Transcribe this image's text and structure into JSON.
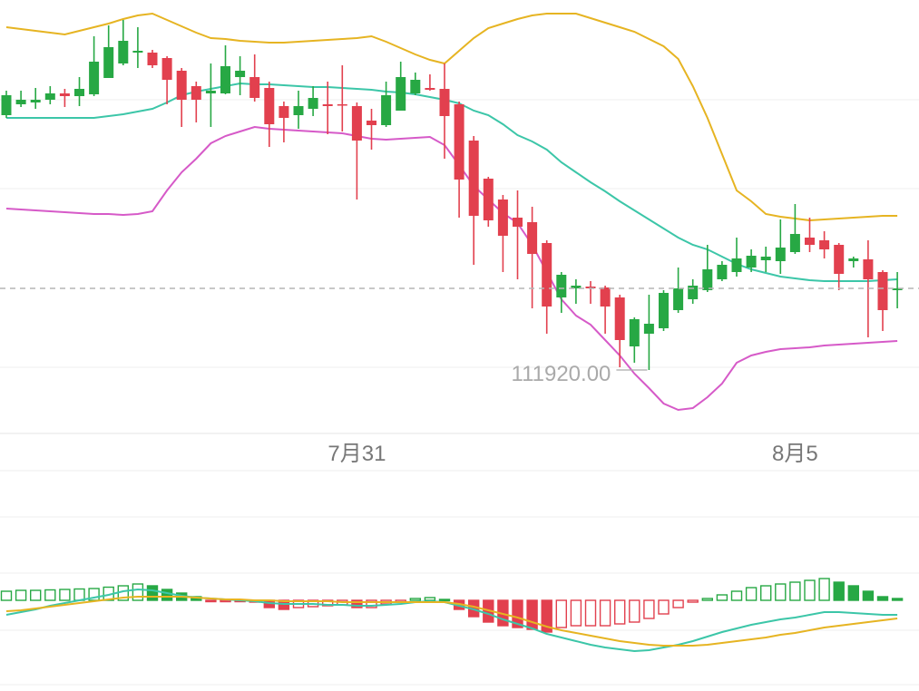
{
  "chart_data": [
    {
      "type": "candlestick",
      "categories": [
        null,
        null,
        null,
        null,
        null,
        null,
        null,
        null,
        null,
        null,
        null,
        null,
        null,
        null,
        null,
        null,
        null,
        null,
        null,
        null,
        null,
        null,
        null,
        null,
        "7月31",
        null,
        null,
        null,
        null,
        null,
        null,
        null,
        null,
        null,
        null,
        null,
        null,
        null,
        null,
        null,
        null,
        null,
        null,
        null,
        null,
        null,
        null,
        null,
        null,
        null,
        null,
        null,
        null,
        null,
        "8月5",
        null,
        null,
        null,
        null,
        null,
        null,
        null
      ],
      "open": [
        117540,
        117780,
        117820,
        117880,
        118020,
        117960,
        118000,
        118360,
        118680,
        118920,
        118920,
        118800,
        118520,
        118180,
        118020,
        118020,
        118380,
        118380,
        118140,
        117740,
        117540,
        117680,
        117780,
        117780,
        117740,
        117420,
        117320,
        117640,
        118020,
        118140,
        118120,
        117780,
        116980,
        116140,
        115680,
        115280,
        115180,
        114720,
        113520,
        113720,
        113760,
        113740,
        113520,
        112440,
        112720,
        112840,
        113240,
        113480,
        113680,
        113920,
        114080,
        114180,
        114340,
        114320,
        114520,
        114840,
        114780,
        114680,
        114320,
        114360,
        114080,
        113680
      ],
      "high": [
        118080,
        118080,
        118140,
        118180,
        118120,
        118380,
        119280,
        119520,
        119640,
        119480,
        118980,
        118840,
        118580,
        118280,
        118680,
        119080,
        118840,
        118880,
        118280,
        117840,
        118080,
        118180,
        118280,
        118640,
        117820,
        117680,
        118280,
        118720,
        118480,
        118440,
        118680,
        117840,
        117080,
        116180,
        115780,
        115880,
        115520,
        114780,
        114080,
        113920,
        113880,
        113780,
        113580,
        113080,
        113580,
        113680,
        114180,
        113920,
        114680,
        114320,
        114840,
        114580,
        114640,
        115240,
        115580,
        115280,
        114980,
        114720,
        114420,
        114780,
        114120,
        114080
      ],
      "low": [
        117480,
        117720,
        117680,
        117780,
        117720,
        117740,
        117960,
        118360,
        118640,
        118580,
        118580,
        117780,
        117280,
        117380,
        117280,
        118000,
        117980,
        117840,
        116840,
        116940,
        117240,
        117520,
        117120,
        117180,
        115680,
        116780,
        117280,
        117640,
        117980,
        118080,
        116580,
        115280,
        114240,
        115080,
        114080,
        113920,
        113280,
        112720,
        113180,
        113380,
        113380,
        112720,
        111980,
        112080,
        111920,
        112780,
        113180,
        113380,
        113640,
        113880,
        113980,
        114080,
        114080,
        114040,
        114480,
        114520,
        114380,
        113680,
        114180,
        112640,
        112780,
        113280
      ],
      "close": [
        117980,
        117880,
        117880,
        118020,
        117960,
        118120,
        118720,
        119040,
        119180,
        118960,
        118640,
        118320,
        117880,
        117880,
        118080,
        118620,
        118520,
        117920,
        117340,
        117480,
        117740,
        117920,
        117740,
        117760,
        116980,
        117320,
        117980,
        118380,
        118320,
        118100,
        117520,
        116120,
        115320,
        115220,
        114880,
        115080,
        114480,
        113320,
        114020,
        113780,
        113720,
        113320,
        112580,
        113040,
        112940,
        113620,
        113720,
        113780,
        114140,
        114240,
        114380,
        114440,
        114420,
        114620,
        114920,
        114680,
        114580,
        114040,
        114380,
        113920,
        113240,
        113720
      ],
      "up_color": "#27a844",
      "down_color": "#e2404e",
      "series": [
        {
          "color": "#e6b422",
          "values": [
            119480,
            119440,
            119400,
            119360,
            119320,
            119400,
            119480,
            119560,
            119660,
            119740,
            119780,
            119640,
            119500,
            119360,
            119240,
            119220,
            119180,
            119160,
            119140,
            119140,
            119160,
            119180,
            119200,
            119220,
            119240,
            119280,
            119160,
            119020,
            118880,
            118760,
            118680,
            118960,
            119240,
            119460,
            119560,
            119660,
            119740,
            119780,
            119780,
            119780,
            119680,
            119580,
            119480,
            119380,
            119220,
            119060,
            118780,
            118180,
            117480,
            116680,
            115880,
            115640,
            115360,
            115300,
            115260,
            115220,
            115240,
            115260,
            115280,
            115300,
            115320,
            115320
          ]
        },
        {
          "color": "#3cc6a8",
          "values": [
            117480,
            117480,
            117480,
            117480,
            117480,
            117480,
            117480,
            117520,
            117560,
            117620,
            117680,
            117820,
            117980,
            118060,
            118120,
            118180,
            118240,
            118220,
            118220,
            118200,
            118180,
            118160,
            118160,
            118140,
            118120,
            118100,
            118060,
            118040,
            118000,
            117940,
            117880,
            117800,
            117640,
            117540,
            117340,
            117100,
            116960,
            116780,
            116500,
            116280,
            116060,
            115860,
            115640,
            115440,
            115240,
            115040,
            114840,
            114680,
            114580,
            114420,
            114260,
            114140,
            114060,
            113980,
            113940,
            113900,
            113880,
            113880,
            113880,
            113880,
            113900,
            113920
          ]
        },
        {
          "color": "#d65ac8",
          "values": [
            115480,
            115460,
            115440,
            115420,
            115400,
            115380,
            115360,
            115360,
            115340,
            115360,
            115420,
            115880,
            116280,
            116580,
            116920,
            117080,
            117180,
            117280,
            117240,
            117220,
            117200,
            117180,
            117160,
            117140,
            117080,
            117020,
            117000,
            117020,
            117040,
            117060,
            116880,
            116440,
            115980,
            115680,
            115380,
            115160,
            114680,
            114080,
            113480,
            113120,
            112920,
            112580,
            112240,
            111840,
            111520,
            111180,
            111040,
            111080,
            111320,
            111620,
            112080,
            112240,
            112320,
            112380,
            112400,
            112420,
            112460,
            112480,
            112500,
            112520,
            112540,
            112560
          ]
        }
      ],
      "last_price": 113720,
      "annotation": {
        "label": "111920.00",
        "value": 111920
      },
      "ylim": [
        110520,
        120080
      ],
      "yticks": [
        117880,
        115920,
        111980
      ],
      "grid": true
    },
    {
      "type": "macd",
      "histogram": [
        200,
        220,
        220,
        230,
        240,
        250,
        260,
        290,
        320,
        360,
        320,
        240,
        160,
        80,
        -20,
        -20,
        -20,
        -40,
        -160,
        -200,
        -160,
        -140,
        -120,
        -100,
        -160,
        -160,
        -80,
        -40,
        40,
        60,
        20,
        -200,
        -360,
        -480,
        -560,
        -600,
        -640,
        -700,
        -600,
        -560,
        -560,
        -560,
        -520,
        -480,
        -400,
        -300,
        -160,
        -40,
        40,
        120,
        200,
        280,
        320,
        360,
        400,
        440,
        480,
        400,
        320,
        200,
        80,
        40
      ],
      "up_color": "#27a844",
      "down_color": "#e2404e",
      "series": [
        {
          "color": "#3cc6a8",
          "values": [
            -320,
            -260,
            -200,
            -120,
            -60,
            0,
            60,
            120,
            200,
            240,
            220,
            160,
            100,
            60,
            40,
            20,
            0,
            -20,
            -60,
            -80,
            -80,
            -80,
            -100,
            -100,
            -120,
            -120,
            -100,
            -80,
            -40,
            -20,
            -40,
            -120,
            -200,
            -300,
            -420,
            -520,
            -620,
            -740,
            -820,
            -900,
            -980,
            -1040,
            -1080,
            -1120,
            -1100,
            -1040,
            -980,
            -900,
            -800,
            -700,
            -620,
            -540,
            -480,
            -420,
            -380,
            -320,
            -260,
            -260,
            -280,
            -300,
            -320,
            -320
          ]
        },
        {
          "color": "#e6b422",
          "values": [
            -240,
            -220,
            -180,
            -140,
            -100,
            -60,
            -20,
            20,
            60,
            80,
            80,
            80,
            80,
            60,
            40,
            20,
            20,
            0,
            0,
            -20,
            -20,
            -20,
            -20,
            -40,
            -40,
            -40,
            -40,
            -40,
            -40,
            -40,
            -40,
            -80,
            -140,
            -220,
            -300,
            -380,
            -480,
            -580,
            -660,
            -720,
            -780,
            -840,
            -900,
            -940,
            -980,
            -1000,
            -1000,
            -1000,
            -980,
            -940,
            -900,
            -860,
            -820,
            -760,
            -720,
            -660,
            -600,
            -560,
            -520,
            -480,
            -440,
            -400
          ]
        }
      ],
      "ylim": [
        -2000,
        2840
      ],
      "yticks": [
        1840,
        600,
        -660,
        -1860
      ],
      "grid": true
    }
  ]
}
